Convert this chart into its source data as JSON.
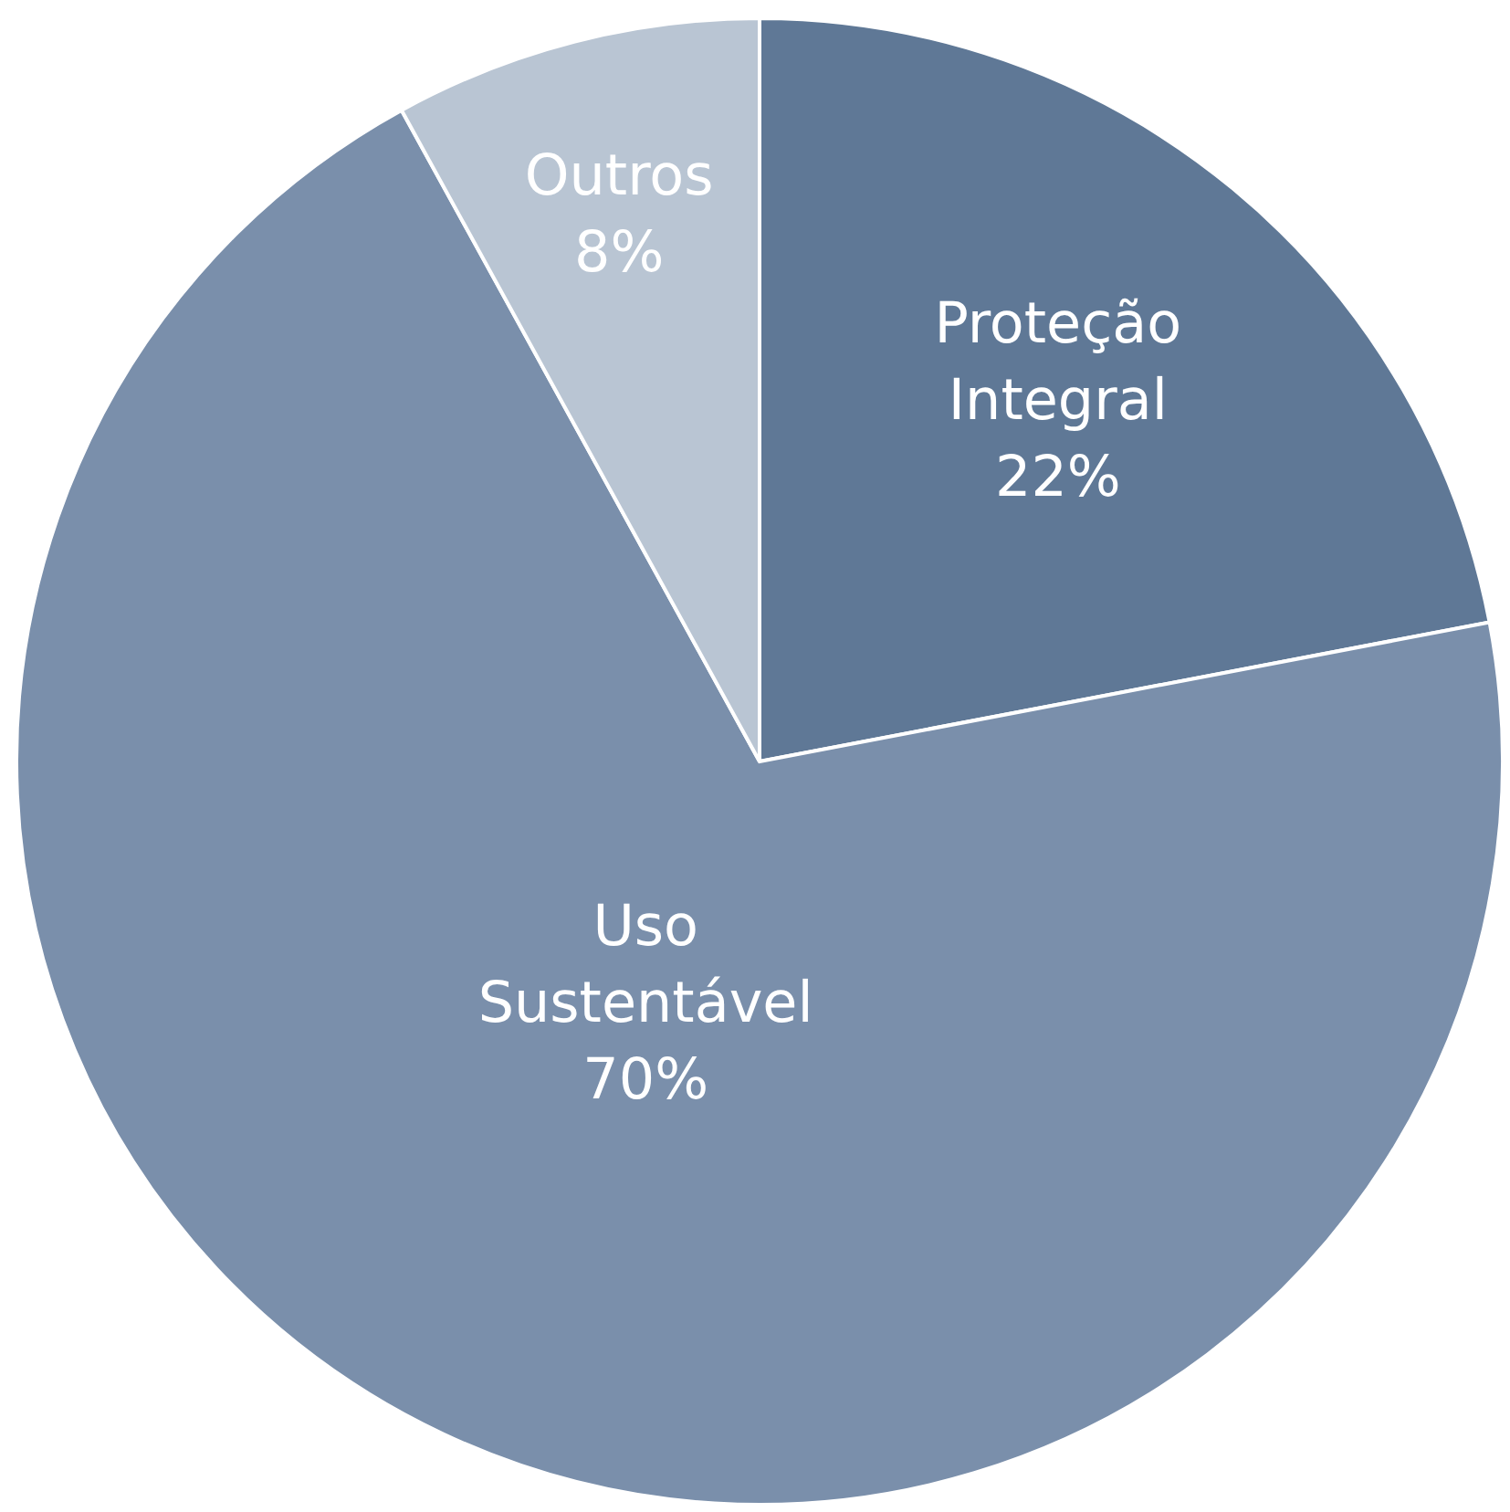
{
  "chart_data": {
    "type": "pie",
    "categories": [
      "Proteção Integral",
      "Uso Sustentável",
      "Outros"
    ],
    "values": [
      22,
      70,
      8
    ],
    "colors": [
      "#5f7896",
      "#7a8fab",
      "#b9c5d3"
    ],
    "value_labels": [
      "22%",
      "70%",
      "8%"
    ],
    "legend": false
  }
}
